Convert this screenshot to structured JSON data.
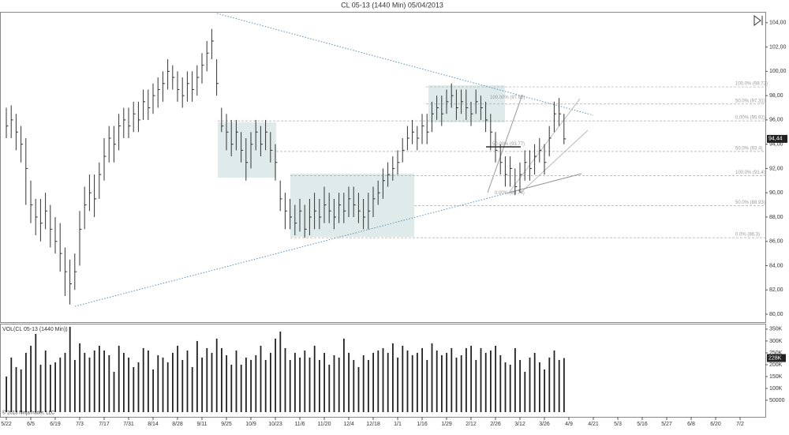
{
  "chart_data": [
    {
      "type": "ohlc",
      "title": "CL 05-13 (1440 Min)  05/04/2013",
      "color": "#333333",
      "high": [
        97,
        97.2,
        96.5,
        95.5,
        94.5,
        91,
        89.5,
        89.5,
        90,
        89,
        88,
        87.5,
        85.5,
        84.5,
        85,
        88.5,
        90.5,
        91.5,
        91.5,
        92.5,
        94.5,
        95.5,
        95.5,
        96.5,
        97,
        97,
        97.5,
        97.5,
        98.5,
        98.5,
        99,
        99.5,
        100,
        101,
        100.5,
        100,
        99.5,
        100,
        100,
        100.5,
        101.5,
        102.5,
        103.5,
        101,
        97,
        96.5,
        96,
        96,
        95,
        94.5,
        95,
        96,
        95.5,
        96,
        95,
        94,
        91,
        90,
        89.5,
        89,
        89.5,
        89,
        89.5,
        90,
        89.5,
        90.5,
        90,
        89.5,
        90,
        90,
        90.5,
        90.5,
        90,
        89.5,
        90,
        90.5,
        91,
        92,
        92.5,
        93,
        93.5,
        94.5,
        95.5,
        96,
        95.5,
        96.5,
        96.5,
        97.5,
        98,
        98,
        98.5,
        99,
        98.5,
        98.5,
        98.5,
        97.5,
        98.5,
        98,
        97.5,
        96.5,
        95,
        94,
        93,
        93,
        92,
        92.5,
        93.5,
        93.5,
        94,
        94.5,
        94,
        95.5,
        97.5,
        97.8,
        96.5
      ],
      "low": [
        94.5,
        94.5,
        93.5,
        92.5,
        89,
        87.5,
        86.5,
        86,
        87,
        85.5,
        85,
        83.5,
        81.5,
        80.8,
        82,
        84,
        87,
        88.5,
        88,
        89.5,
        91,
        92.5,
        92.5,
        93.5,
        94.5,
        94.5,
        95,
        95,
        96,
        96,
        96.5,
        97,
        97.5,
        98.5,
        98.5,
        97.5,
        97,
        97.5,
        97.5,
        98,
        99,
        100,
        101,
        98,
        95,
        93.5,
        93,
        93.5,
        92.5,
        91,
        92,
        93.5,
        93,
        93.5,
        92.5,
        91,
        88.5,
        87,
        87,
        86.5,
        86.8,
        86.3,
        86.5,
        87,
        87,
        87.5,
        87.5,
        87,
        87.5,
        87.5,
        88,
        88,
        87.5,
        87,
        87,
        88,
        89,
        89.5,
        90.5,
        91,
        91.5,
        92.5,
        93.5,
        94,
        93.5,
        94,
        94,
        95,
        96,
        95.5,
        96.5,
        97,
        96,
        96.5,
        96,
        95.5,
        96.5,
        96,
        95,
        93.5,
        92.5,
        91.5,
        90.5,
        90.5,
        89.8,
        90,
        91,
        91,
        91.5,
        92.5,
        91.5,
        93,
        95,
        95.5,
        94
      ],
      "close": [
        95.5,
        96,
        95,
        94,
        92,
        89,
        88,
        87.5,
        88.5,
        87,
        86,
        85,
        83.5,
        82.5,
        83.5,
        87,
        89,
        90,
        89.5,
        91.5,
        93,
        94.5,
        94,
        95.5,
        96,
        95.5,
        96.5,
        96,
        97.5,
        97,
        98,
        98.5,
        99,
        100,
        99.5,
        98.5,
        98,
        99,
        98.5,
        99.5,
        100.5,
        101.5,
        102.5,
        99,
        95.5,
        95,
        94,
        95,
        93.5,
        92.5,
        94,
        95,
        94,
        95,
        93.5,
        92.5,
        89.5,
        88.5,
        88,
        87.5,
        88.5,
        87,
        88,
        88.5,
        88,
        89,
        88.5,
        88,
        89,
        88.5,
        89.5,
        89,
        88.5,
        88,
        88.5,
        89.5,
        90,
        91,
        91.5,
        92,
        92.5,
        93.5,
        94.5,
        95,
        94.5,
        95.5,
        95,
        96.5,
        97,
        96.5,
        97.5,
        98,
        97,
        97.5,
        97,
        96.5,
        97.5,
        97,
        96,
        95,
        93.5,
        92.5,
        91.5,
        92,
        90.5,
        91.5,
        92.5,
        92,
        93,
        93.5,
        92.5,
        94.5,
        96.5,
        96.5,
        94.44
      ],
      "last_label": "94,44",
      "ylim": [
        79.35,
        104.9
      ],
      "yticks": [
        {
          "value": 80,
          "label": "80,00"
        },
        {
          "value": 82,
          "label": "82,00"
        },
        {
          "value": 84,
          "label": "84,00"
        },
        {
          "value": 86,
          "label": "86,00"
        },
        {
          "value": 88,
          "label": "88,00"
        },
        {
          "value": 90,
          "label": "90,00"
        },
        {
          "value": 92,
          "label": "92,00"
        },
        {
          "value": 94,
          "label": "94,00"
        },
        {
          "value": 96,
          "label": "96,00"
        },
        {
          "value": 98,
          "label": "98,00"
        },
        {
          "value": 100,
          "label": "100,00"
        },
        {
          "value": 102,
          "label": "102,00"
        },
        {
          "value": 104,
          "label": "104,00"
        }
      ],
      "fib_levels": [
        {
          "value": 98.72,
          "label": "100.0% (98.72)"
        },
        {
          "value": 97.31,
          "label": "50.0% (97.31)"
        },
        {
          "value": 95.92,
          "label": "0.00% (95.92)"
        },
        {
          "value": 93.4,
          "label": "50.0% (93.4)"
        },
        {
          "value": 91.4,
          "label": "100.0% (91.4)"
        },
        {
          "value": 88.93,
          "label": "50.0% (88.93)"
        },
        {
          "value": 86.3,
          "label": "0.0% (86.3)"
        }
      ],
      "fib_inner": [
        {
          "value": 97.6,
          "label": "100.00% (97.60)"
        },
        {
          "value": 93.77,
          "label": "50.00% (93.77)"
        },
        {
          "value": 89.74,
          "label": "0.00% (89.74)"
        }
      ]
    },
    {
      "type": "volume",
      "title": "VOL(CL 05-13 (1440 Min))",
      "color": "#222222",
      "values": [
        150000,
        230000,
        190000,
        180000,
        250000,
        280000,
        330000,
        200000,
        260000,
        200000,
        210000,
        230000,
        250000,
        360000,
        220000,
        290000,
        250000,
        230000,
        260000,
        280000,
        260000,
        240000,
        170000,
        280000,
        250000,
        230000,
        190000,
        210000,
        270000,
        260000,
        180000,
        240000,
        230000,
        210000,
        250000,
        280000,
        220000,
        260000,
        190000,
        300000,
        230000,
        270000,
        250000,
        310000,
        270000,
        240000,
        200000,
        260000,
        200000,
        230000,
        220000,
        240000,
        280000,
        220000,
        250000,
        310000,
        340000,
        270000,
        220000,
        250000,
        230000,
        260000,
        230000,
        280000,
        220000,
        250000,
        200000,
        240000,
        230000,
        310000,
        250000,
        220000,
        190000,
        240000,
        220000,
        250000,
        260000,
        270000,
        250000,
        290000,
        230000,
        280000,
        260000,
        240000,
        250000,
        270000,
        220000,
        290000,
        260000,
        240000,
        250000,
        270000,
        230000,
        240000,
        270000,
        280000,
        220000,
        270000,
        250000,
        260000,
        280000,
        240000,
        210000,
        200000,
        270000,
        220000,
        170000,
        230000,
        250000,
        210000,
        180000,
        230000,
        260000,
        220000,
        228000
      ],
      "last_label": "228K",
      "ylim": [
        -20000,
        373000
      ],
      "yticks": [
        {
          "value": 50000,
          "label": "50000"
        },
        {
          "value": 100000,
          "label": "100K"
        },
        {
          "value": 150000,
          "label": "150K"
        },
        {
          "value": 200000,
          "label": "200K"
        },
        {
          "value": 250000,
          "label": "250K"
        },
        {
          "value": 300000,
          "label": "300K"
        },
        {
          "value": 350000,
          "label": "350K"
        }
      ],
      "xtick_labels": [
        "5/22",
        "6/5",
        "6/19",
        "7/3",
        "7/17",
        "7/31",
        "8/14",
        "8/28",
        "9/11",
        "9/25",
        "10/9",
        "10/23",
        "11/6",
        "11/20",
        "12/4",
        "12/18",
        "1/1",
        "1/16",
        "1/29",
        "2/12",
        "2/26",
        "3/12",
        "3/26",
        "4/9",
        "4/21",
        "5/3",
        "5/16",
        "5/27",
        "6/8",
        "6/20",
        "7/2"
      ],
      "copyright": "© 2013 NinjaTrader, LLC"
    }
  ]
}
